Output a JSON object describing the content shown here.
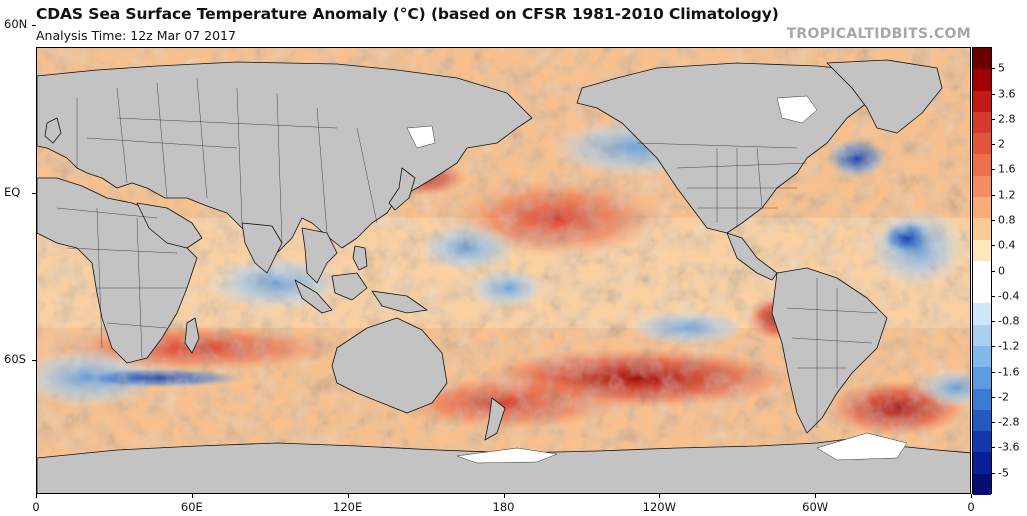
{
  "header": {
    "title": "CDAS Sea Surface Temperature Anomaly (°C) (based on CFSR 1981-2010 Climatology)",
    "subtitle": "Analysis Time: 12z Mar 07 2017",
    "brand": "TROPICALTIDBITS.COM"
  },
  "map": {
    "projection": "cylindrical-equidistant",
    "lon_range": [
      0,
      360
    ],
    "lat_range": [
      -80,
      80
    ],
    "land_color": "#c3c3c3",
    "ice_color": "#ffffff",
    "lat_labels": [
      {
        "lat": 60,
        "text": "60N"
      },
      {
        "lat": 0,
        "text": "EQ"
      },
      {
        "lat": -60,
        "text": "60S"
      }
    ],
    "lon_labels": [
      {
        "lon": 0,
        "text": "0"
      },
      {
        "lon": 60,
        "text": "60E"
      },
      {
        "lon": 120,
        "text": "120E"
      },
      {
        "lon": 180,
        "text": "180"
      },
      {
        "lon": 240,
        "text": "120W"
      },
      {
        "lon": 300,
        "text": "60W"
      },
      {
        "lon": 360,
        "text": "0"
      }
    ]
  },
  "colorbar": {
    "unit": "°C",
    "labels": [
      "5",
      "3.6",
      "2.8",
      "2",
      "1.6",
      "1.2",
      "0.8",
      "0.4",
      "0",
      "-0.4",
      "-0.8",
      "-1.2",
      "-1.6",
      "-2",
      "-2.8",
      "-3.6",
      "-5"
    ],
    "colors": [
      "#6b0000",
      "#a00000",
      "#c21a14",
      "#d63a2c",
      "#e2553c",
      "#ea6f4c",
      "#f18d60",
      "#f6ab78",
      "#fbcb95",
      "#fde6bd",
      "#ffffff",
      "#ffffff",
      "#cfe6f8",
      "#a9d0f1",
      "#82b8ea",
      "#5c9be0",
      "#3a7bd3",
      "#2459c2",
      "#1339ad",
      "#0a1f95",
      "#050c73"
    ]
  }
}
